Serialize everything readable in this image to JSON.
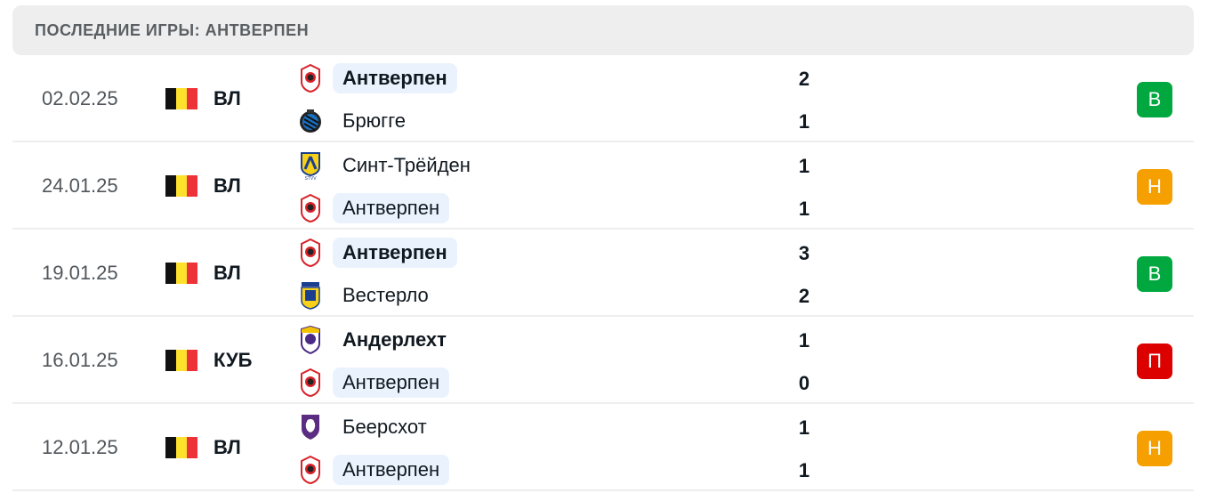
{
  "header": {
    "title": "ПОСЛЕДНИЕ ИГРЫ: АНТВЕРПЕН"
  },
  "colors": {
    "win": "#00a83f",
    "draw": "#f5a000",
    "loss": "#dc0000",
    "highlight": "#eaf3fd"
  },
  "matches": [
    {
      "date": "02.02.25",
      "league": "ВЛ",
      "flag": "belgium",
      "result": "В",
      "result_type": "win",
      "home": {
        "name": "Антверпен",
        "logo": "antwerp",
        "score": "2",
        "bold": true,
        "highlight": true
      },
      "away": {
        "name": "Брюгге",
        "logo": "brugge",
        "score": "1",
        "bold": false,
        "highlight": false
      }
    },
    {
      "date": "24.01.25",
      "league": "ВЛ",
      "flag": "belgium",
      "result": "Н",
      "result_type": "draw",
      "home": {
        "name": "Синт-Трёйден",
        "logo": "stvv",
        "score": "1",
        "bold": false,
        "highlight": false
      },
      "away": {
        "name": "Антверпен",
        "logo": "antwerp",
        "score": "1",
        "bold": false,
        "highlight": true
      }
    },
    {
      "date": "19.01.25",
      "league": "ВЛ",
      "flag": "belgium",
      "result": "В",
      "result_type": "win",
      "home": {
        "name": "Антверпен",
        "logo": "antwerp",
        "score": "3",
        "bold": true,
        "highlight": true
      },
      "away": {
        "name": "Вестерло",
        "logo": "westerlo",
        "score": "2",
        "bold": false,
        "highlight": false
      }
    },
    {
      "date": "16.01.25",
      "league": "КУБ",
      "flag": "belgium",
      "result": "П",
      "result_type": "loss",
      "home": {
        "name": "Андерлехт",
        "logo": "anderlecht",
        "score": "1",
        "bold": true,
        "highlight": false
      },
      "away": {
        "name": "Антверпен",
        "logo": "antwerp",
        "score": "0",
        "bold": false,
        "highlight": true
      }
    },
    {
      "date": "12.01.25",
      "league": "ВЛ",
      "flag": "belgium",
      "result": "Н",
      "result_type": "draw",
      "home": {
        "name": "Беерсхот",
        "logo": "beerschot",
        "score": "1",
        "bold": false,
        "highlight": false
      },
      "away": {
        "name": "Антверпен",
        "logo": "antwerp",
        "score": "1",
        "bold": false,
        "highlight": true
      }
    }
  ]
}
